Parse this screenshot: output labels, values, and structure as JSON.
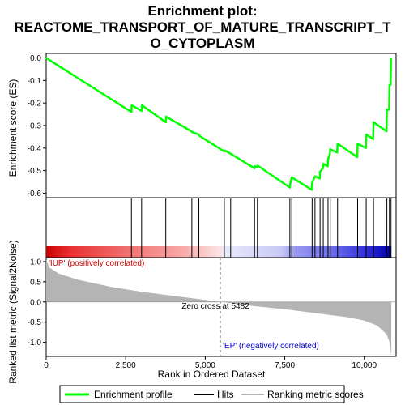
{
  "chart_data": {
    "type": "line",
    "title_line1": "Enrichment plot:",
    "title_line2": "REACTOME_TRANSPORT_OF_MATURE_TRANSCRIPT_T",
    "title_line3": "O_CYTOPLASM",
    "top_panel": {
      "ylabel": "Enrichment score (ES)",
      "ylim": [
        -0.62,
        0.02
      ],
      "yticks": [
        0.0,
        -0.1,
        -0.2,
        -0.3,
        -0.4,
        -0.5,
        -0.6
      ],
      "ytick_labels": [
        "0.0",
        "-0.1",
        "-0.2",
        "-0.3",
        "-0.4",
        "-0.5",
        "-0.6"
      ],
      "zero_line": true,
      "line_color": "#00ff00",
      "series": [
        {
          "name": "Enrichment profile",
          "points": [
            [
              0,
              0.0
            ],
            [
              2680,
              -0.24
            ],
            [
              2690,
              -0.21
            ],
            [
              3000,
              -0.235
            ],
            [
              3010,
              -0.21
            ],
            [
              3760,
              -0.285
            ],
            [
              3770,
              -0.26
            ],
            [
              4560,
              -0.325
            ],
            [
              4600,
              -0.33
            ],
            [
              4800,
              -0.34
            ],
            [
              4810,
              -0.345
            ],
            [
              5600,
              -0.415
            ],
            [
              5610,
              -0.41
            ],
            [
              5800,
              -0.425
            ],
            [
              6550,
              -0.49
            ],
            [
              6560,
              -0.48
            ],
            [
              6640,
              -0.485
            ],
            [
              6650,
              -0.478
            ],
            [
              7660,
              -0.575
            ],
            [
              7670,
              -0.56
            ],
            [
              7720,
              -0.53
            ],
            [
              8350,
              -0.585
            ],
            [
              8360,
              -0.555
            ],
            [
              8450,
              -0.525
            ],
            [
              8600,
              -0.535
            ],
            [
              8610,
              -0.505
            ],
            [
              8700,
              -0.49
            ],
            [
              8710,
              -0.47
            ],
            [
              8850,
              -0.48
            ],
            [
              8860,
              -0.45
            ],
            [
              8920,
              -0.425
            ],
            [
              8930,
              -0.405
            ],
            [
              9150,
              -0.42
            ],
            [
              9160,
              -0.38
            ],
            [
              9780,
              -0.44
            ],
            [
              9790,
              -0.38
            ],
            [
              10050,
              -0.4
            ],
            [
              10060,
              -0.34
            ],
            [
              10280,
              -0.36
            ],
            [
              10290,
              -0.285
            ],
            [
              10700,
              -0.325
            ],
            [
              10710,
              -0.23
            ],
            [
              10780,
              -0.23
            ],
            [
              10790,
              -0.12
            ],
            [
              10830,
              -0.12
            ],
            [
              10840,
              0.0
            ]
          ]
        }
      ]
    },
    "hits": {
      "name": "Hits",
      "positions": [
        2680,
        3000,
        3760,
        4580,
        4800,
        5600,
        5800,
        6550,
        6640,
        7660,
        7720,
        8360,
        8450,
        8610,
        8710,
        8860,
        8930,
        9160,
        9790,
        10060,
        10290,
        10710,
        10790,
        10840
      ]
    },
    "gradient_bar": {
      "stops": [
        {
          "offset": 0.0,
          "color": "#cc0000"
        },
        {
          "offset": 0.07,
          "color": "#e83030"
        },
        {
          "offset": 0.22,
          "color": "#f06a6a"
        },
        {
          "offset": 0.4,
          "color": "#f8aaaa"
        },
        {
          "offset": 0.5,
          "color": "#fde0e0"
        },
        {
          "offset": 0.52,
          "color": "#e8e8fb"
        },
        {
          "offset": 0.68,
          "color": "#c8c8f4"
        },
        {
          "offset": 0.72,
          "color": "#9a9af0"
        },
        {
          "offset": 0.85,
          "color": "#6060e8"
        },
        {
          "offset": 0.95,
          "color": "#2020d0"
        },
        {
          "offset": 1.0,
          "color": "#0000a0"
        }
      ]
    },
    "bottom_panel": {
      "ylabel": "Ranked list metric (Signal2Noise)",
      "ylim": [
        -1.35,
        1.1
      ],
      "yticks": [
        1.0,
        0.5,
        0.0,
        -0.5,
        -1.0
      ],
      "ytick_labels": [
        "1.0",
        "0.5",
        "0.0",
        "-0.5",
        "-1.0"
      ],
      "fill_color": "#b4b4b4",
      "metric_curve": [
        [
          0,
          1.05
        ],
        [
          100,
          0.85
        ],
        [
          400,
          0.7
        ],
        [
          1000,
          0.55
        ],
        [
          2000,
          0.38
        ],
        [
          3000,
          0.25
        ],
        [
          4000,
          0.15
        ],
        [
          5000,
          0.05
        ],
        [
          5482,
          0.0
        ],
        [
          6500,
          -0.1
        ],
        [
          7500,
          -0.18
        ],
        [
          8500,
          -0.28
        ],
        [
          9500,
          -0.38
        ],
        [
          10000,
          -0.46
        ],
        [
          10400,
          -0.58
        ],
        [
          10700,
          -0.8
        ],
        [
          10800,
          -1.0
        ],
        [
          10850,
          -1.35
        ]
      ],
      "zero_cross_label": "Zero cross at 5482",
      "zero_cross_x": 5482,
      "pos_label": "'IUP' (positively correlated)",
      "neg_label": "'EP' (negatively correlated)"
    },
    "xaxis": {
      "label": "Rank in Ordered Dataset",
      "xlim": [
        0,
        11000
      ],
      "ticks": [
        0,
        2500,
        5000,
        7500,
        10000
      ],
      "tick_labels": [
        "0",
        "2,500",
        "5,000",
        "7,500",
        "10,000"
      ],
      "list_length": 10850
    },
    "legend": {
      "items": [
        {
          "label": "Enrichment profile",
          "color": "#00ff00"
        },
        {
          "label": "Hits",
          "color": "#000000"
        },
        {
          "label": "Ranking metric scores",
          "color": "#b4b4b4"
        }
      ]
    }
  }
}
